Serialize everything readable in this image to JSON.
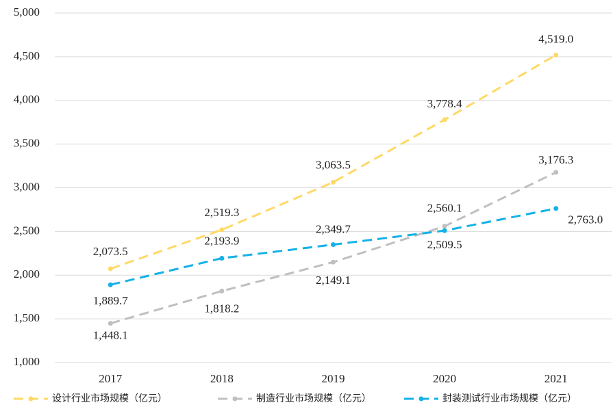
{
  "chart_data": {
    "type": "line",
    "categories": [
      "2017",
      "2018",
      "2019",
      "2020",
      "2021"
    ],
    "series": [
      {
        "name": "设计行业市场规模（亿元）",
        "color": "#FFD966",
        "values": [
          2073.5,
          2519.3,
          3063.5,
          3778.4,
          4519.0
        ],
        "value_labels": [
          "2,073.5",
          "2,519.3",
          "3,063.5",
          "3,778.4",
          "4,519.0"
        ]
      },
      {
        "name": "制造行业市场规模（亿元）",
        "color": "#BFBFBF",
        "values": [
          1448.1,
          1818.2,
          2149.1,
          2560.1,
          3176.3
        ],
        "value_labels": [
          "1,448.1",
          "1,818.2",
          "2,149.1",
          "2,560.1",
          "3,176.3"
        ]
      },
      {
        "name": "封装测试行业市场规模（亿元）",
        "color": "#14B1E7",
        "values": [
          1889.7,
          2193.9,
          2349.7,
          2509.5,
          2763.0
        ],
        "value_labels": [
          "1,889.7",
          "2,193.9",
          "2,349.7",
          "2,509.5",
          "2,763.0"
        ]
      }
    ],
    "ylim": [
      1000,
      5000
    ],
    "yticks": [
      {
        "value": 1000,
        "label": "1,000"
      },
      {
        "value": 1500,
        "label": "1,500"
      },
      {
        "value": 2000,
        "label": "2,000"
      },
      {
        "value": 2500,
        "label": "2,500"
      },
      {
        "value": 3000,
        "label": "3,000"
      },
      {
        "value": 3500,
        "label": "3,500"
      },
      {
        "value": 4000,
        "label": "4,000"
      },
      {
        "value": 4500,
        "label": "4,500"
      },
      {
        "value": 5000,
        "label": "5,000"
      }
    ],
    "grid": true,
    "legend": "bottom"
  }
}
